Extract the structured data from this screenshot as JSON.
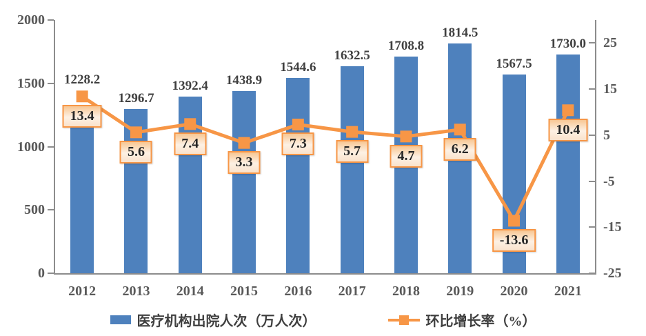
{
  "chart_data": {
    "type": "combo",
    "categories": [
      "2012",
      "2013",
      "2014",
      "2015",
      "2016",
      "2017",
      "2018",
      "2019",
      "2020",
      "2021"
    ],
    "series": [
      {
        "name": "医疗机构出院人次（万人次）",
        "chart_type": "bar",
        "axis": "left",
        "color": "#4E81BD",
        "values": [
          1228.2,
          1296.7,
          1392.4,
          1438.9,
          1544.6,
          1632.5,
          1708.8,
          1814.5,
          1567.5,
          1730.0
        ],
        "labels": [
          "1228.2",
          "1296.7",
          "1392.4",
          "1438.9",
          "1544.6",
          "1632.5",
          "1708.8",
          "1814.5",
          "1567.5",
          "1730.0"
        ]
      },
      {
        "name": "环比增长率（%）",
        "chart_type": "line",
        "axis": "right",
        "color": "#F79646",
        "values": [
          13.4,
          5.6,
          7.4,
          3.3,
          7.3,
          5.7,
          4.7,
          6.2,
          -13.6,
          10.4
        ],
        "labels": [
          "13.4",
          "5.6",
          "7.4",
          "3.3",
          "7.3",
          "5.7",
          "4.7",
          "6.2",
          "-13.6",
          "10.4"
        ]
      }
    ],
    "left_axis": {
      "min": 0,
      "max": 2000,
      "tick_values": [
        0,
        500,
        1000,
        1500,
        2000
      ],
      "tick_labels": [
        "0",
        "500",
        "1000",
        "1500",
        "2000"
      ]
    },
    "right_axis": {
      "min": -25,
      "max": 30,
      "tick_values": [
        -25,
        -15,
        -5,
        5,
        15,
        25
      ],
      "tick_labels": [
        "-25",
        "-15",
        "-5",
        "5",
        "15",
        "25"
      ]
    },
    "grid": false,
    "legend_position": "bottom",
    "title": ""
  },
  "colors": {
    "bar": "#4E81BD",
    "line": "#F79646",
    "axis_line": "#8C8C8C",
    "axis_text": "#595959",
    "bar_label_text": "#404040",
    "point_label_text": "#262626",
    "point_label_border": "#F79646"
  }
}
